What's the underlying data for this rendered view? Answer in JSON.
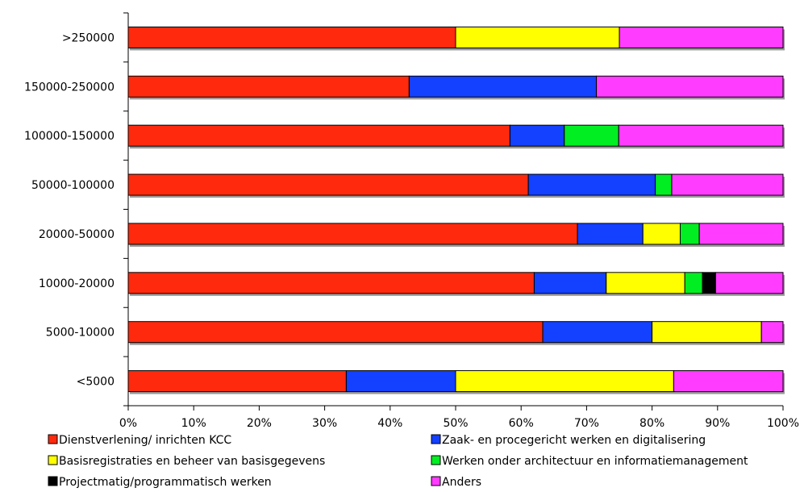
{
  "chart_data": {
    "type": "bar",
    "orientation": "horizontal",
    "stacked": "percent",
    "categories": [
      ">250000",
      "150000-250000",
      "100000-150000",
      "50000-100000",
      "20000-50000",
      "10000-20000",
      "5000-10000",
      "<5000"
    ],
    "x_ticks": [
      "0%",
      "10%",
      "20%",
      "30%",
      "40%",
      "50%",
      "60%",
      "70%",
      "80%",
      "90%",
      "100%"
    ],
    "xlim": [
      0,
      100
    ],
    "grid": false,
    "legend_position": "bottom",
    "series": [
      {
        "name": "Dienstverlening/ inrichten KCC",
        "color": "#ff2a0d",
        "values": [
          50.0,
          42.9,
          58.3,
          61.1,
          68.6,
          62.0,
          63.3,
          33.3
        ]
      },
      {
        "name": "Zaak- en procegericht werken en digitalisering",
        "color": "#1440ff",
        "values": [
          0,
          28.6,
          8.3,
          19.4,
          10.0,
          11.0,
          16.7,
          16.7
        ]
      },
      {
        "name": "Basisregistraties en beheer van basisgegevens",
        "color": "#ffff00",
        "values": [
          25.0,
          0,
          0,
          0,
          5.7,
          12.0,
          16.7,
          33.3
        ]
      },
      {
        "name": "Werken onder architectuur en informatiemanagement",
        "color": "#00ee22",
        "values": [
          0,
          0,
          8.3,
          2.5,
          2.9,
          2.7,
          0,
          0
        ]
      },
      {
        "name": "Projectmatig/programmatisch werken",
        "color": "#000000",
        "values": [
          0,
          0,
          0,
          0,
          0,
          2.0,
          0,
          0
        ]
      },
      {
        "name": "Anders",
        "color": "#ff3cff",
        "values": [
          25.0,
          28.5,
          25.1,
          17.0,
          12.8,
          10.3,
          3.3,
          16.7
        ]
      }
    ]
  }
}
